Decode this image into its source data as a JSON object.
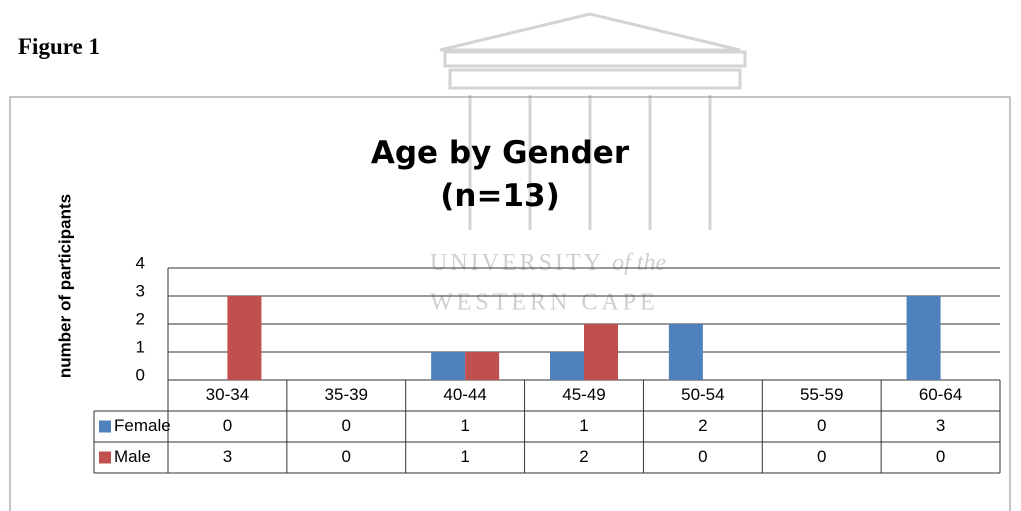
{
  "heading": "Figure 1",
  "watermark": {
    "line1": "UNIVERSITY",
    "line1_tail": "of the",
    "line2": "WESTERN CAPE"
  },
  "chart_data": {
    "type": "bar",
    "title": "Age by Gender (n=13)",
    "y_label": "number of participants",
    "categories": [
      "30-34",
      "35-39",
      "40-44",
      "45-49",
      "50-54",
      "55-59",
      "60-64"
    ],
    "series": [
      {
        "name": "Female",
        "color": "#4f81bd",
        "values": [
          0,
          0,
          1,
          1,
          2,
          0,
          3
        ]
      },
      {
        "name": "Male",
        "color": "#c0504d",
        "values": [
          3,
          0,
          1,
          2,
          0,
          0,
          0
        ]
      }
    ],
    "ylim": [
      0,
      4
    ],
    "yticks": [
      0,
      1,
      2,
      3,
      4
    ],
    "grid": true,
    "data_table": true
  }
}
